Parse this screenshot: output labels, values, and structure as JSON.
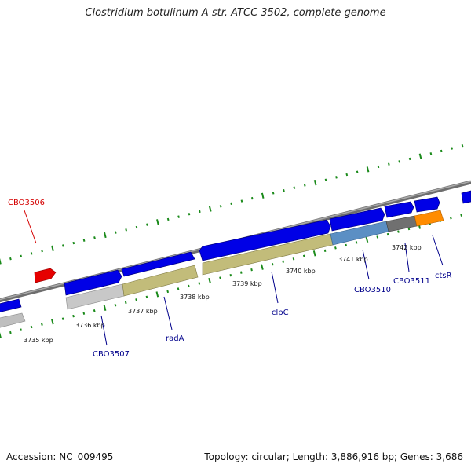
{
  "title": "Clostridium botulinum A str. ATCC 3502, complete genome",
  "footer": {
    "accession": "Accession: NC_009495",
    "topology": "Topology: circular; Length: 3,886,916 bp; Genes: 3,686"
  },
  "colors": {
    "forward_gene": "#0000e6",
    "backbone": "#8c8c8c",
    "tick": "#1a8a1a",
    "highlight_gene": "#e60000",
    "olive_gene": "#c2bc7a",
    "grey_gene": "#bfbfbf",
    "steel_gene": "#5b8fc4",
    "dark_gene": "#707070",
    "orange_gene": "#ff8c00",
    "label_normal": "#00008b",
    "label_highlight": "#d40000"
  },
  "scale": {
    "unit": "kbp",
    "labels": [
      "3735 kbp",
      "3736 kbp",
      "3737 kbp",
      "3738 kbp",
      "3739 kbp",
      "3740 kbp",
      "3741 kbp",
      "3742 kbp"
    ]
  },
  "gene_labels": [
    {
      "name": "CBO3506",
      "highlight": true
    },
    {
      "name": "CBO3507",
      "highlight": false
    },
    {
      "name": "radA",
      "highlight": false
    },
    {
      "name": "clpC",
      "highlight": false
    },
    {
      "name": "CBO3510",
      "highlight": false
    },
    {
      "name": "CBO3511",
      "highlight": false
    },
    {
      "name": "ctsR",
      "highlight": false
    }
  ]
}
